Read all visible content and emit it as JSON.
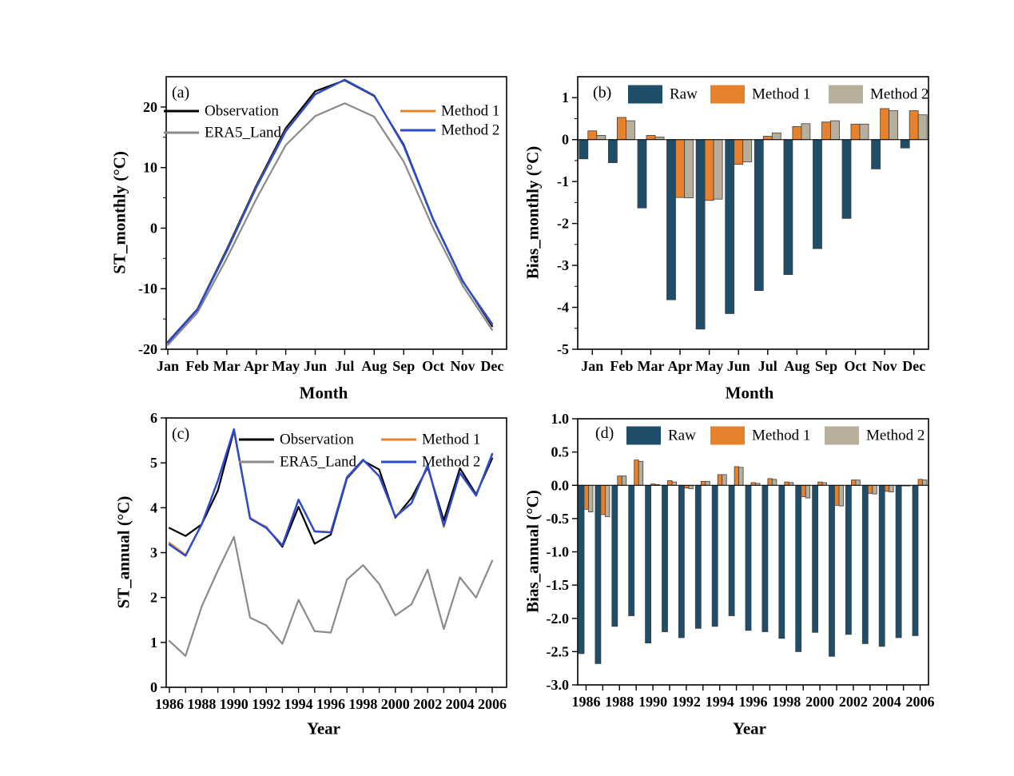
{
  "figure": {
    "background": "#ffffff"
  },
  "palette": {
    "observation": "#000000",
    "era5_land": "#8a8a8a",
    "method1": "#e8812c",
    "method2_line": "#2b4bcd",
    "raw": "#1f4e6a",
    "method2_bar": "#b8ae9c",
    "bar_outline": "#3f3f3f",
    "axis": "#000000"
  },
  "chart_data": [
    {
      "id": "a",
      "type": "line",
      "tag": "(a)",
      "xlabel": "Month",
      "ylabel": "ST_monthly (°C)",
      "categories": [
        "Jan",
        "Feb",
        "Mar",
        "Apr",
        "May",
        "Jun",
        "Jul",
        "Aug",
        "Sep",
        "Oct",
        "Nov",
        "Dec"
      ],
      "ylim": [
        -20,
        25
      ],
      "yticks": {
        "values": [
          20,
          10,
          0,
          -10,
          -20
        ],
        "labels": [
          "20",
          "10",
          "0",
          "-10",
          "-20"
        ]
      },
      "yminor": [
        15,
        5,
        -5,
        -15
      ],
      "xtick_label_every": 1,
      "legend": [
        "Observation",
        "ERA5_Land",
        "Method 1",
        "Method 2"
      ],
      "legend_position": "top-inside",
      "grid": false,
      "series": [
        {
          "key": "era5_land",
          "name": "ERA5_Land",
          "color_key": "era5_land",
          "values": [
            -19.3,
            -14.0,
            -5.0,
            4.8,
            13.7,
            18.5,
            20.6,
            18.4,
            11.0,
            0.0,
            -9.5,
            -16.8
          ]
        },
        {
          "key": "observation",
          "name": "Observation",
          "color_key": "observation",
          "values": [
            -18.8,
            -13.4,
            -3.5,
            7.0,
            16.5,
            22.6,
            24.4,
            21.8,
            13.8,
            1.5,
            -8.7,
            -16.2
          ]
        },
        {
          "key": "method1",
          "name": "Method 1",
          "color_key": "method1",
          "values": [
            -18.9,
            -13.5,
            -3.7,
            6.8,
            16.1,
            22.1,
            24.5,
            21.9,
            13.6,
            1.4,
            -8.8,
            -15.9
          ]
        },
        {
          "key": "method2",
          "name": "Method 2",
          "color_key": "method2_line",
          "values": [
            -18.9,
            -13.5,
            -3.8,
            6.7,
            16.0,
            22.1,
            24.5,
            21.9,
            13.6,
            1.4,
            -8.8,
            -15.8
          ]
        }
      ]
    },
    {
      "id": "b",
      "type": "bar",
      "tag": "(b)",
      "xlabel": "Month",
      "ylabel": "Bias_monthly (°C)",
      "categories": [
        "Jan",
        "Feb",
        "Mar",
        "Apr",
        "May",
        "Jun",
        "Jul",
        "Aug",
        "Sep",
        "Oct",
        "Nov",
        "Dec"
      ],
      "ylim": [
        -5,
        1.5
      ],
      "yticks": {
        "values": [
          1,
          0,
          -1,
          -2,
          -3,
          -4,
          -5
        ],
        "labels": [
          "1",
          "0",
          "-1",
          "-2",
          "-3",
          "-4",
          "-5"
        ]
      },
      "yminor": [
        0.5,
        -0.5,
        -1.5,
        -2.5,
        -3.5,
        -4.5
      ],
      "xtick_label_every": 1,
      "legend": [
        "Raw",
        "Method 1",
        "Method 2"
      ],
      "legend_position": "top-inside",
      "grid": false,
      "series": [
        {
          "key": "raw",
          "name": "Raw",
          "color_key": "raw",
          "values": [
            -0.46,
            -0.55,
            -1.63,
            -3.82,
            -4.52,
            -4.15,
            -3.6,
            -3.22,
            -2.6,
            -1.88,
            -0.7,
            -0.2
          ]
        },
        {
          "key": "method1",
          "name": "Method 1",
          "color_key": "method1",
          "values": [
            0.21,
            0.53,
            0.1,
            -1.38,
            -1.45,
            -0.59,
            0.08,
            0.31,
            0.42,
            0.37,
            0.74,
            0.69
          ]
        },
        {
          "key": "method2",
          "name": "Method 2",
          "color_key": "method2_bar",
          "values": [
            0.1,
            0.45,
            0.06,
            -1.39,
            -1.42,
            -0.53,
            0.16,
            0.38,
            0.45,
            0.37,
            0.69,
            0.59
          ]
        }
      ]
    },
    {
      "id": "c",
      "type": "line",
      "tag": "(c)",
      "xlabel": "Year",
      "ylabel": "ST_annual (°C)",
      "categories": [
        "1986",
        "1987",
        "1988",
        "1989",
        "1990",
        "1991",
        "1992",
        "1993",
        "1994",
        "1995",
        "1996",
        "1997",
        "1998",
        "1999",
        "2000",
        "2001",
        "2002",
        "2003",
        "2004",
        "2005",
        "2006"
      ],
      "ylim": [
        0,
        6
      ],
      "yticks": {
        "values": [
          6,
          5,
          4,
          3,
          2,
          1,
          0
        ],
        "labels": [
          "6",
          "5",
          "4",
          "3",
          "2",
          "1",
          "0"
        ]
      },
      "yminor": [],
      "xtick_label_every": 2,
      "legend": [
        "Observation",
        "ERA5_Land",
        "Method 1",
        "Method 2"
      ],
      "legend_position": "top-inside",
      "grid": false,
      "series": [
        {
          "key": "era5_land",
          "name": "ERA5_Land",
          "color_key": "era5_land",
          "values": [
            1.03,
            0.7,
            1.8,
            2.6,
            3.35,
            1.55,
            1.38,
            0.97,
            1.95,
            1.25,
            1.22,
            2.4,
            2.72,
            2.3,
            1.6,
            1.85,
            2.62,
            1.3,
            2.45,
            2.0,
            2.82
          ]
        },
        {
          "key": "observation",
          "name": "Observation",
          "color_key": "observation",
          "values": [
            3.55,
            3.37,
            3.63,
            4.38,
            5.72,
            3.76,
            3.57,
            3.13,
            4.02,
            3.2,
            3.4,
            4.65,
            5.05,
            4.85,
            3.78,
            4.22,
            4.9,
            3.72,
            4.88,
            4.3,
            5.1
          ]
        },
        {
          "key": "method1",
          "name": "Method 1",
          "color_key": "method1",
          "values": [
            3.22,
            2.95,
            3.63,
            4.6,
            5.74,
            3.78,
            3.56,
            3.17,
            4.17,
            3.48,
            3.46,
            4.67,
            5.06,
            4.71,
            3.81,
            4.11,
            4.94,
            3.57,
            4.77,
            4.28,
            5.18
          ]
        },
        {
          "key": "method2",
          "name": "Method 2",
          "color_key": "method2_line",
          "values": [
            3.18,
            2.93,
            3.63,
            4.6,
            5.75,
            3.76,
            3.55,
            3.16,
            4.18,
            3.47,
            3.45,
            4.68,
            5.07,
            4.7,
            3.8,
            4.1,
            4.95,
            3.6,
            4.78,
            4.27,
            5.2
          ]
        }
      ]
    },
    {
      "id": "d",
      "type": "bar",
      "tag": "(d)",
      "xlabel": "Year",
      "ylabel": "Bias_annual (°C)",
      "categories": [
        "1986",
        "1987",
        "1988",
        "1989",
        "1990",
        "1991",
        "1992",
        "1993",
        "1994",
        "1995",
        "1996",
        "1997",
        "1998",
        "1999",
        "2000",
        "2001",
        "2002",
        "2003",
        "2004",
        "2005",
        "2006"
      ],
      "ylim": [
        -3,
        1
      ],
      "yticks": {
        "values": [
          1.0,
          0.5,
          0.0,
          -0.5,
          -1.0,
          -1.5,
          -2.0,
          -2.5,
          -3.0
        ],
        "labels": [
          "1.0",
          "0.5",
          "0.0",
          "-0.5",
          "-1.0",
          "-1.5",
          "-2.0",
          "-2.5",
          "-3.0"
        ]
      },
      "yminor": [],
      "xtick_label_every": 2,
      "legend": [
        "Raw",
        "Method 1",
        "Method 2"
      ],
      "legend_position": "top-inside",
      "grid": false,
      "series": [
        {
          "key": "raw",
          "name": "Raw",
          "color_key": "raw",
          "values": [
            -2.53,
            -2.68,
            -2.12,
            -1.96,
            -2.37,
            -2.2,
            -2.29,
            -2.15,
            -2.12,
            -1.96,
            -2.18,
            -2.2,
            -2.3,
            -2.5,
            -2.21,
            -2.57,
            -2.24,
            -2.38,
            -2.42,
            -2.29,
            -2.26
          ]
        },
        {
          "key": "method1",
          "name": "Method 1",
          "color_key": "method1",
          "values": [
            -0.36,
            -0.44,
            0.14,
            0.38,
            0.02,
            0.07,
            -0.04,
            0.06,
            0.16,
            0.28,
            0.04,
            0.1,
            0.05,
            -0.17,
            0.05,
            -0.3,
            0.08,
            -0.12,
            -0.09,
            -0.01,
            0.09
          ]
        },
        {
          "key": "method2",
          "name": "Method 2",
          "color_key": "method2_bar",
          "values": [
            -0.4,
            -0.47,
            0.14,
            0.36,
            0.01,
            0.05,
            -0.05,
            0.06,
            0.16,
            0.27,
            0.03,
            0.09,
            0.04,
            -0.19,
            0.04,
            -0.31,
            0.08,
            -0.13,
            -0.1,
            -0.01,
            0.08
          ]
        }
      ]
    }
  ]
}
